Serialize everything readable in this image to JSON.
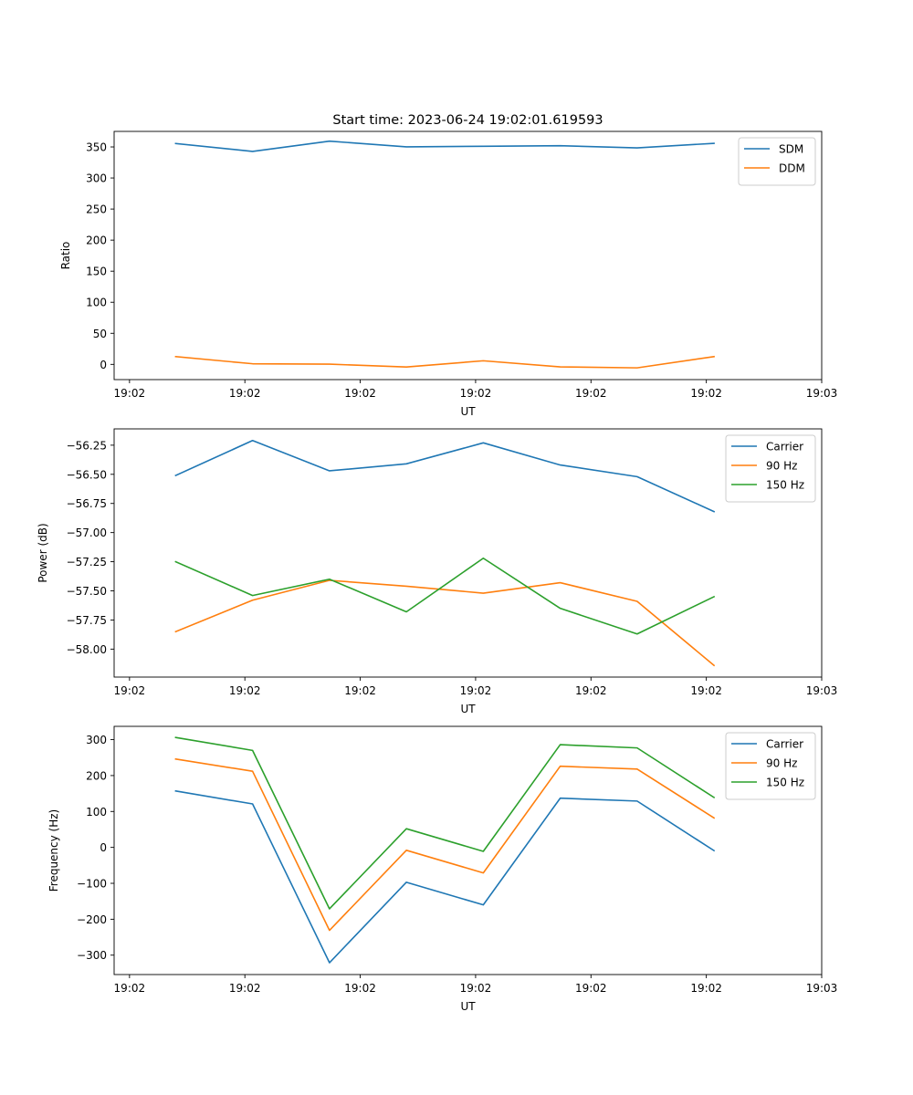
{
  "figure": {
    "title": "Start time: 2023-06-24 19:02:01.619593"
  },
  "chart_data": [
    {
      "type": "line",
      "title": "Start time: 2023-06-24 19:02:01.619593",
      "xlabel": "UT",
      "ylabel": "Ratio",
      "x": [
        1,
        2,
        3,
        4,
        5,
        6,
        7,
        8
      ],
      "xlim": [
        0.2,
        9.4
      ],
      "x_ticks": [
        {
          "pos": 0.4,
          "label": "19:02"
        },
        {
          "pos": 1.9,
          "label": "19:02"
        },
        {
          "pos": 3.4,
          "label": "19:02"
        },
        {
          "pos": 4.9,
          "label": "19:02"
        },
        {
          "pos": 6.4,
          "label": "19:02"
        },
        {
          "pos": 7.9,
          "label": "19:02"
        },
        {
          "pos": 9.4,
          "label": "19:03"
        }
      ],
      "ylim": [
        -24.5,
        375
      ],
      "y_ticks": [
        0,
        50,
        100,
        150,
        200,
        250,
        300,
        350
      ],
      "y_tick_labels": [
        "0",
        "50",
        "100",
        "150",
        "200",
        "250",
        "300",
        "350"
      ],
      "legend_position": "top-right",
      "grid": false,
      "series": [
        {
          "name": "SDM",
          "color": "#1f77b4",
          "values": [
            355.5,
            342.8,
            359.3,
            350.2,
            351.1,
            352.0,
            348.5,
            355.8
          ]
        },
        {
          "name": "DDM",
          "color": "#ff7f0e",
          "values": [
            12.5,
            1.0,
            0.3,
            -4.2,
            5.8,
            -4.0,
            -5.6,
            12.5
          ]
        }
      ]
    },
    {
      "type": "line",
      "title": "",
      "xlabel": "UT",
      "ylabel": "Power (dB)",
      "x": [
        1,
        2,
        3,
        4,
        5,
        6,
        7,
        8
      ],
      "xlim": [
        0.2,
        9.4
      ],
      "x_ticks": [
        {
          "pos": 0.4,
          "label": "19:02"
        },
        {
          "pos": 1.9,
          "label": "19:02"
        },
        {
          "pos": 3.4,
          "label": "19:02"
        },
        {
          "pos": 4.9,
          "label": "19:02"
        },
        {
          "pos": 6.4,
          "label": "19:02"
        },
        {
          "pos": 7.9,
          "label": "19:02"
        },
        {
          "pos": 9.4,
          "label": "19:03"
        }
      ],
      "ylim": [
        -58.24,
        -56.11
      ],
      "y_ticks": [
        -58.0,
        -57.75,
        -57.5,
        -57.25,
        -57.0,
        -56.75,
        -56.5,
        -56.25
      ],
      "y_tick_labels": [
        "−58.00",
        "−57.75",
        "−57.50",
        "−57.25",
        "−57.00",
        "−56.75",
        "−56.50",
        "−56.25"
      ],
      "legend_position": "top-right",
      "grid": false,
      "series": [
        {
          "name": "Carrier",
          "color": "#1f77b4",
          "values": [
            -56.51,
            -56.21,
            -56.47,
            -56.41,
            -56.23,
            -56.42,
            -56.52,
            -56.82
          ]
        },
        {
          "name": "90 Hz",
          "color": "#ff7f0e",
          "values": [
            -57.85,
            -57.58,
            -57.41,
            -57.46,
            -57.52,
            -57.43,
            -57.59,
            -58.14
          ]
        },
        {
          "name": "150 Hz",
          "color": "#2ca02c",
          "values": [
            -57.25,
            -57.54,
            -57.4,
            -57.68,
            -57.22,
            -57.65,
            -57.87,
            -57.55
          ]
        }
      ]
    },
    {
      "type": "line",
      "title": "",
      "xlabel": "UT",
      "ylabel": "Frequency (Hz)",
      "x": [
        1,
        2,
        3,
        4,
        5,
        6,
        7,
        8
      ],
      "xlim": [
        0.2,
        9.4
      ],
      "x_ticks": [
        {
          "pos": 0.4,
          "label": "19:02"
        },
        {
          "pos": 1.9,
          "label": "19:02"
        },
        {
          "pos": 3.4,
          "label": "19:02"
        },
        {
          "pos": 4.9,
          "label": "19:02"
        },
        {
          "pos": 6.4,
          "label": "19:02"
        },
        {
          "pos": 7.9,
          "label": "19:02"
        },
        {
          "pos": 9.4,
          "label": "19:03"
        }
      ],
      "ylim": [
        -354,
        337
      ],
      "y_ticks": [
        -300,
        -200,
        -100,
        0,
        100,
        200,
        300
      ],
      "y_tick_labels": [
        "−300",
        "−200",
        "−100",
        "0",
        "100",
        "200",
        "300"
      ],
      "legend_position": "top-right",
      "grid": false,
      "series": [
        {
          "name": "Carrier",
          "color": "#1f77b4",
          "values": [
            157,
            121,
            -321,
            -97,
            -160,
            137,
            129,
            -9
          ]
        },
        {
          "name": "90 Hz",
          "color": "#ff7f0e",
          "values": [
            246,
            212,
            -231,
            -8,
            -71,
            226,
            218,
            82
          ]
        },
        {
          "name": "150 Hz",
          "color": "#2ca02c",
          "values": [
            306,
            270,
            -171,
            52,
            -11,
            286,
            277,
            139
          ]
        }
      ]
    }
  ]
}
